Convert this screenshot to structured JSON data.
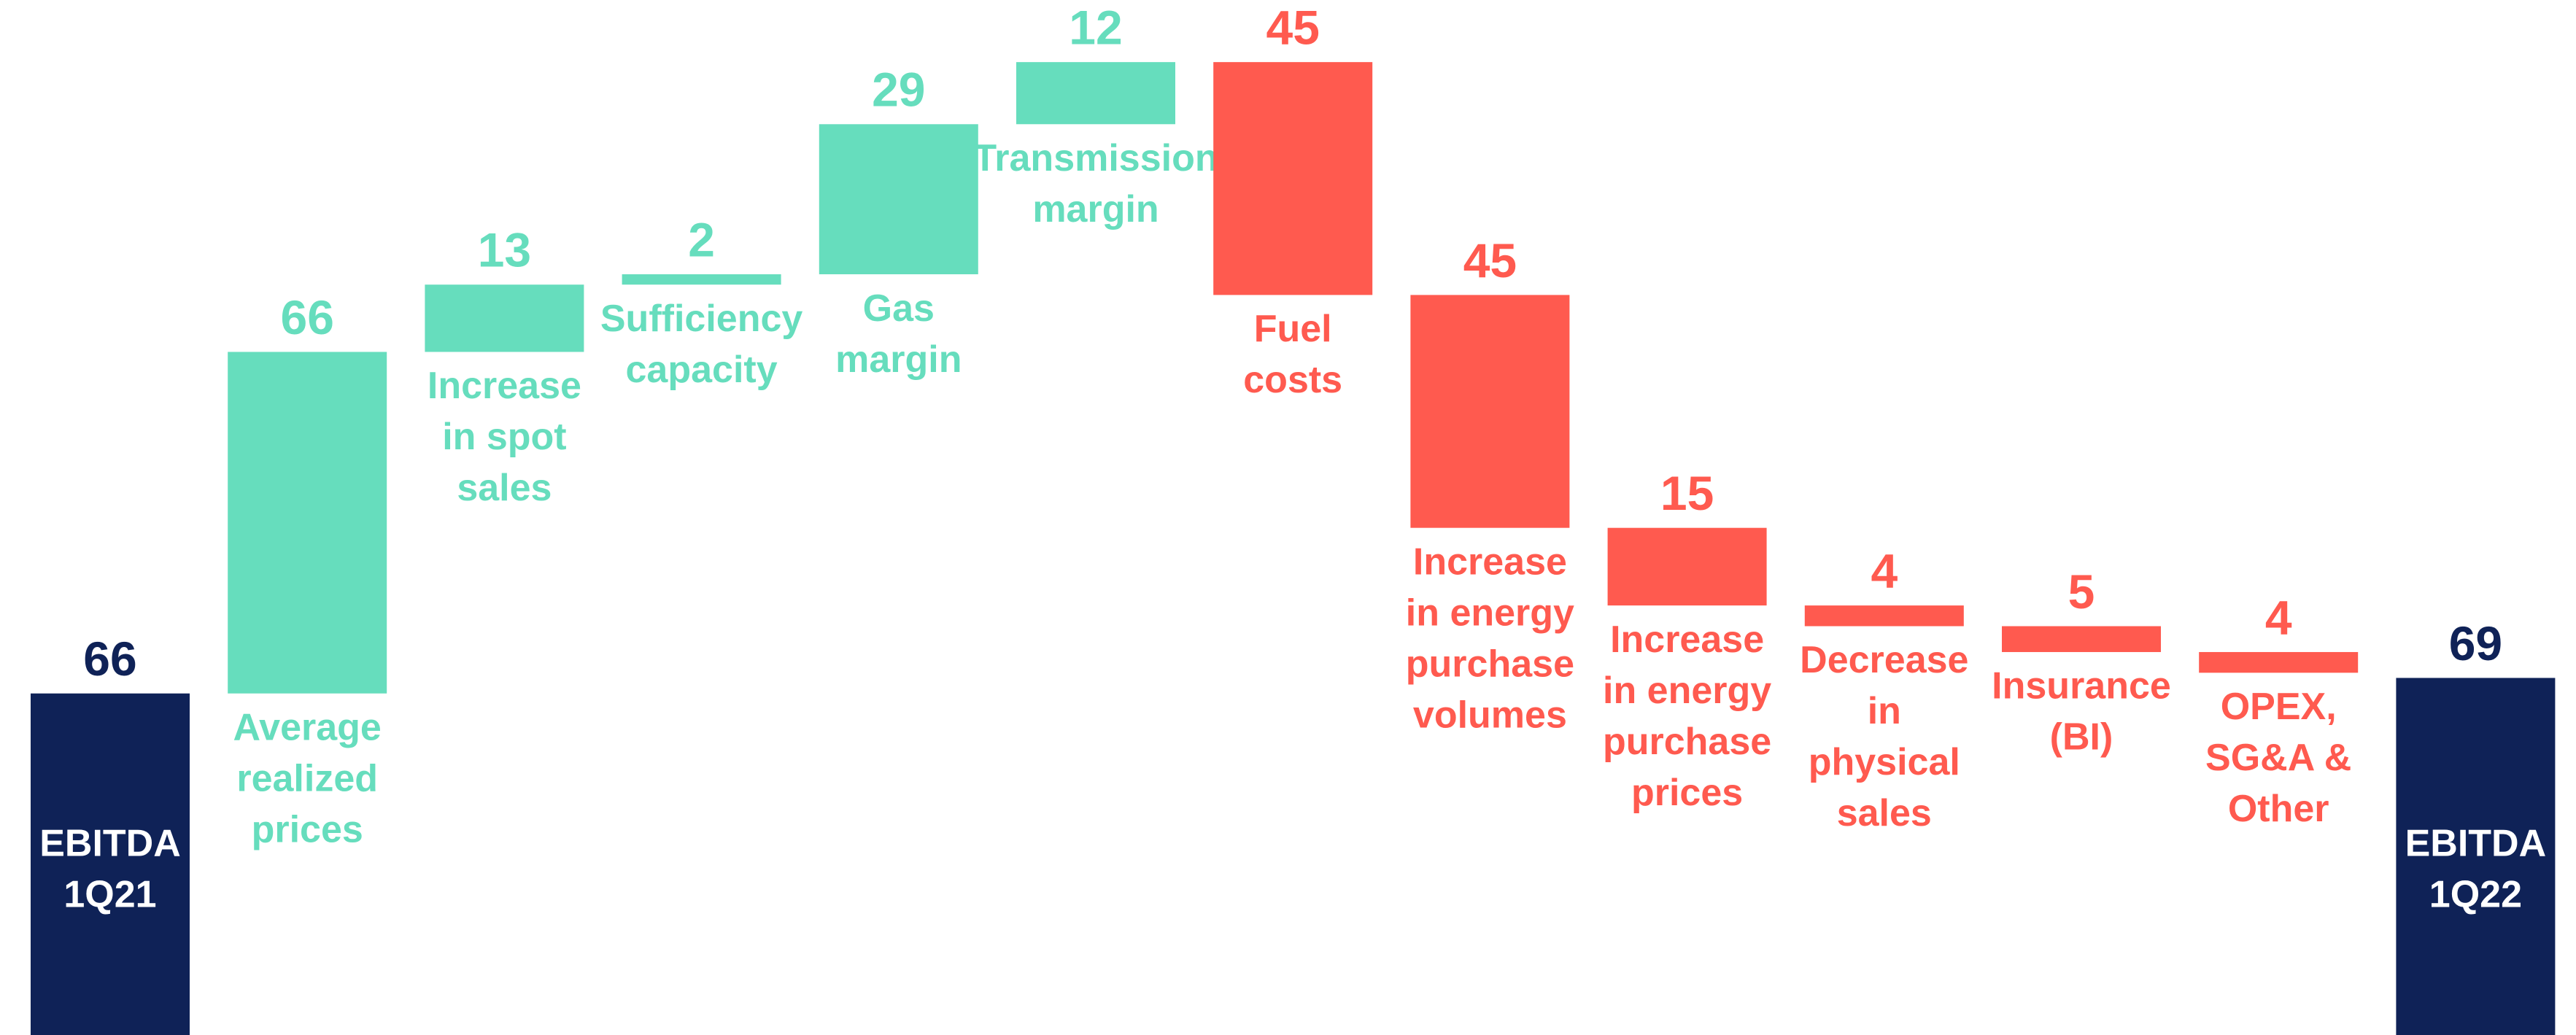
{
  "chart_data": {
    "type": "waterfall",
    "categories": [
      [
        "EBITDA",
        "1Q21"
      ],
      [
        "Average",
        "realized",
        "prices"
      ],
      [
        "Increase",
        "in spot",
        "sales"
      ],
      [
        "Sufficiency",
        "capacity"
      ],
      [
        "Gas",
        "margin"
      ],
      [
        "Transmission",
        "margin"
      ],
      [
        "Fuel",
        "costs"
      ],
      [
        "Increase",
        "in energy",
        "purchase",
        "volumes"
      ],
      [
        "Increase",
        "in energy",
        "purchase",
        "prices"
      ],
      [
        "Decrease",
        "in",
        "physical",
        "sales"
      ],
      [
        "Insurance",
        "(BI)"
      ],
      [
        "OPEX,",
        "SG&A &",
        "Other"
      ],
      [
        "EBITDA",
        "1Q22"
      ]
    ],
    "values": [
      66,
      66,
      13,
      2,
      29,
      12,
      -45,
      -45,
      -15,
      -4,
      -5,
      -4,
      69
    ],
    "value_labels": [
      "66",
      "66",
      "13",
      "2",
      "29",
      "12",
      "45",
      "45",
      "15",
      "4",
      "5",
      "4",
      "69"
    ],
    "measure": [
      "total",
      "increase",
      "increase",
      "increase",
      "increase",
      "increase",
      "decrease",
      "decrease",
      "decrease",
      "decrease",
      "decrease",
      "decrease",
      "total"
    ],
    "colors": {
      "total": "#0f2257",
      "increase": "#66ddbd",
      "decrease": "#ff5a4f"
    },
    "ylim": [
      0,
      200
    ]
  }
}
